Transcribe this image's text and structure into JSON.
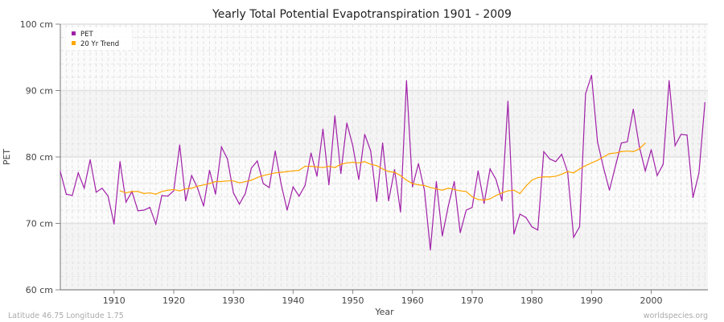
{
  "chart_data": {
    "type": "line",
    "title": "Yearly Total Potential Evapotranspiration 1901 - 2009",
    "xlabel": "Year",
    "ylabel": "PET",
    "ylim": [
      60,
      100
    ],
    "xlim": [
      1901,
      2009
    ],
    "yticks": [
      {
        "v": 60,
        "label": "60 cm"
      },
      {
        "v": 70,
        "label": "70 cm"
      },
      {
        "v": 80,
        "label": "80 cm"
      },
      {
        "v": 90,
        "label": "90 cm"
      },
      {
        "v": 100,
        "label": "100 cm"
      }
    ],
    "xticks": [
      1910,
      1920,
      1930,
      1940,
      1950,
      1960,
      1970,
      1980,
      1990,
      2000
    ],
    "legend": {
      "placement": "top-left"
    },
    "series": [
      {
        "name": "PET",
        "color": "#a020a8",
        "x_start": 1901,
        "values": [
          77.8,
          74.4,
          74.2,
          77.6,
          75.3,
          79.6,
          74.7,
          75.3,
          74.1,
          69.9,
          79.3,
          73.2,
          74.8,
          71.9,
          72.0,
          72.4,
          69.9,
          74.2,
          74.1,
          74.9,
          81.8,
          73.4,
          77.2,
          75.3,
          72.6,
          78.0,
          74.4,
          81.5,
          79.7,
          74.6,
          72.9,
          74.5,
          78.3,
          79.4,
          76.0,
          75.4,
          80.9,
          75.9,
          72.0,
          75.5,
          74.1,
          75.7,
          80.6,
          77.1,
          84.2,
          75.8,
          86.2,
          77.5,
          85.1,
          81.7,
          76.6,
          83.4,
          80.9,
          73.3,
          82.1,
          73.4,
          78.1,
          71.7,
          91.5,
          75.5,
          79.0,
          75.0,
          66.0,
          76.3,
          68.1,
          72.6,
          76.3,
          68.6,
          72.0,
          72.4,
          77.9,
          73.0,
          78.2,
          76.6,
          73.4,
          88.4,
          68.4,
          71.4,
          70.9,
          69.5,
          69.0,
          80.8,
          79.7,
          79.3,
          80.4,
          77.7,
          67.9,
          69.5,
          89.5,
          92.3,
          82.3,
          78.4,
          75.0,
          78.6,
          82.1,
          82.3,
          87.2,
          81.6,
          77.9,
          81.1,
          77.2,
          78.9,
          91.5,
          81.7,
          83.4,
          83.3,
          73.9,
          77.6,
          88.2
        ]
      },
      {
        "name": "20 Yr Trend",
        "color": "#ffa500",
        "x_start": 1911,
        "values": [
          74.9,
          74.6,
          74.8,
          74.8,
          74.5,
          74.6,
          74.4,
          74.8,
          75.0,
          75.1,
          74.9,
          75.2,
          75.3,
          75.6,
          75.8,
          76.0,
          76.3,
          76.3,
          76.4,
          76.4,
          76.1,
          76.3,
          76.5,
          76.9,
          77.2,
          77.4,
          77.6,
          77.7,
          77.8,
          77.9,
          78.0,
          78.6,
          78.6,
          78.5,
          78.4,
          78.6,
          78.4,
          78.9,
          79.1,
          79.2,
          79.1,
          79.3,
          78.9,
          78.7,
          78.2,
          77.8,
          77.7,
          77.2,
          76.5,
          76.0,
          75.8,
          75.7,
          75.4,
          75.2,
          75.0,
          75.3,
          75.1,
          74.9,
          74.8,
          74.0,
          73.6,
          73.5,
          73.7,
          74.2,
          74.6,
          74.9,
          75.0,
          74.5,
          75.6,
          76.5,
          76.9,
          77.0,
          77.0,
          77.1,
          77.4,
          77.8,
          77.6,
          78.2,
          78.7,
          79.1,
          79.5,
          80.0,
          80.5,
          80.6,
          80.8,
          80.9,
          80.8,
          81.2,
          82.1
        ]
      }
    ]
  },
  "footer": {
    "location": "Latitude 46.75 Longitude 1.75",
    "credit": "worldspecies.org"
  }
}
